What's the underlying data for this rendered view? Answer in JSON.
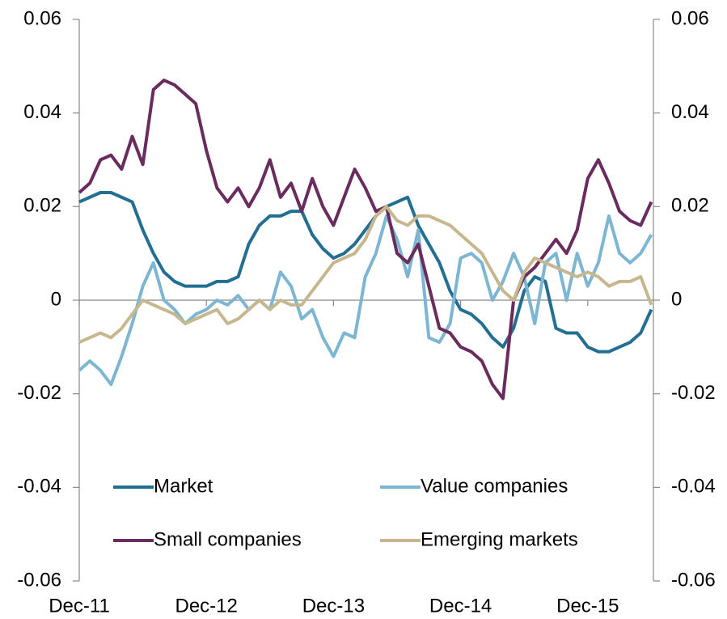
{
  "chart_data": {
    "type": "line",
    "categories": [
      "Dec-11",
      null,
      null,
      null,
      null,
      null,
      null,
      null,
      null,
      null,
      null,
      null,
      "Dec-12",
      null,
      null,
      null,
      null,
      null,
      null,
      null,
      null,
      null,
      null,
      null,
      "Dec-13",
      null,
      null,
      null,
      null,
      null,
      null,
      null,
      null,
      null,
      null,
      null,
      "Dec-14",
      null,
      null,
      null,
      null,
      null,
      null,
      null,
      null,
      null,
      null,
      null,
      "Dec-15",
      null,
      null,
      null,
      null,
      null,
      null
    ],
    "series": [
      {
        "name": "Market",
        "color": "#236f92",
        "values": [
          0.021,
          0.022,
          0.023,
          0.023,
          0.022,
          0.021,
          0.015,
          0.01,
          0.006,
          0.004,
          0.003,
          0.003,
          0.003,
          0.004,
          0.004,
          0.005,
          0.012,
          0.016,
          0.018,
          0.018,
          0.019,
          0.019,
          0.014,
          0.011,
          0.009,
          0.01,
          0.012,
          0.015,
          0.018,
          0.02,
          0.021,
          0.022,
          0.016,
          0.012,
          0.008,
          0.002,
          -0.002,
          -0.003,
          -0.005,
          -0.008,
          -0.01,
          -0.006,
          0.002,
          0.005,
          0.004,
          -0.006,
          -0.007,
          -0.007,
          -0.01,
          -0.011,
          -0.011,
          -0.01,
          -0.009,
          -0.007,
          -0.002
        ]
      },
      {
        "name": "Value companies",
        "color": "#7db6d2",
        "values": [
          -0.015,
          -0.013,
          -0.015,
          -0.018,
          -0.012,
          -0.005,
          0.003,
          0.008,
          0.0,
          -0.002,
          -0.005,
          -0.003,
          -0.002,
          0.0,
          -0.001,
          0.001,
          -0.002,
          0.0,
          -0.002,
          0.006,
          0.003,
          -0.004,
          -0.002,
          -0.008,
          -0.012,
          -0.007,
          -0.008,
          0.005,
          0.01,
          0.018,
          0.013,
          0.005,
          0.015,
          -0.008,
          -0.009,
          -0.005,
          0.009,
          0.01,
          0.008,
          0.0,
          0.004,
          0.01,
          0.005,
          -0.005,
          0.008,
          0.01,
          0.0,
          0.01,
          0.003,
          0.008,
          0.018,
          0.01,
          0.008,
          0.01,
          0.014
        ]
      },
      {
        "name": "Small companies",
        "color": "#6a2c5e",
        "values": [
          0.023,
          0.025,
          0.03,
          0.031,
          0.028,
          0.035,
          0.029,
          0.045,
          0.047,
          0.046,
          0.044,
          0.042,
          0.032,
          0.024,
          0.021,
          0.024,
          0.02,
          0.024,
          0.03,
          0.022,
          0.025,
          0.019,
          0.026,
          0.02,
          0.016,
          0.022,
          0.028,
          0.024,
          0.019,
          0.02,
          0.01,
          0.008,
          0.012,
          0.003,
          -0.006,
          -0.007,
          -0.01,
          -0.011,
          -0.013,
          -0.018,
          -0.021,
          0.0,
          0.005,
          0.007,
          0.01,
          0.013,
          0.01,
          0.015,
          0.026,
          0.03,
          0.025,
          0.019,
          0.017,
          0.016,
          0.021
        ]
      },
      {
        "name": "Emerging markets",
        "color": "#c7b78e",
        "values": [
          -0.009,
          -0.008,
          -0.007,
          -0.008,
          -0.006,
          -0.003,
          0.0,
          -0.001,
          -0.002,
          -0.003,
          -0.005,
          -0.004,
          -0.003,
          -0.002,
          -0.005,
          -0.004,
          -0.002,
          0.0,
          -0.002,
          0.0,
          -0.001,
          -0.001,
          0.002,
          0.005,
          0.008,
          0.009,
          0.01,
          0.013,
          0.018,
          0.02,
          0.017,
          0.016,
          0.018,
          0.018,
          0.017,
          0.016,
          0.014,
          0.012,
          0.01,
          0.006,
          0.002,
          0.0,
          0.006,
          0.009,
          0.008,
          0.007,
          0.006,
          0.005,
          0.006,
          0.005,
          0.003,
          0.004,
          0.004,
          0.005,
          -0.001
        ]
      }
    ],
    "ylim": [
      -0.06,
      0.06
    ],
    "yticks": [
      -0.06,
      -0.04,
      -0.02,
      0,
      0.02,
      0.04,
      0.06
    ],
    "y2lim": [
      -0.06,
      0.06
    ],
    "y2ticks": [
      -0.06,
      -0.04,
      -0.02,
      0,
      0.02,
      0.04,
      0.06
    ],
    "grid": false
  }
}
